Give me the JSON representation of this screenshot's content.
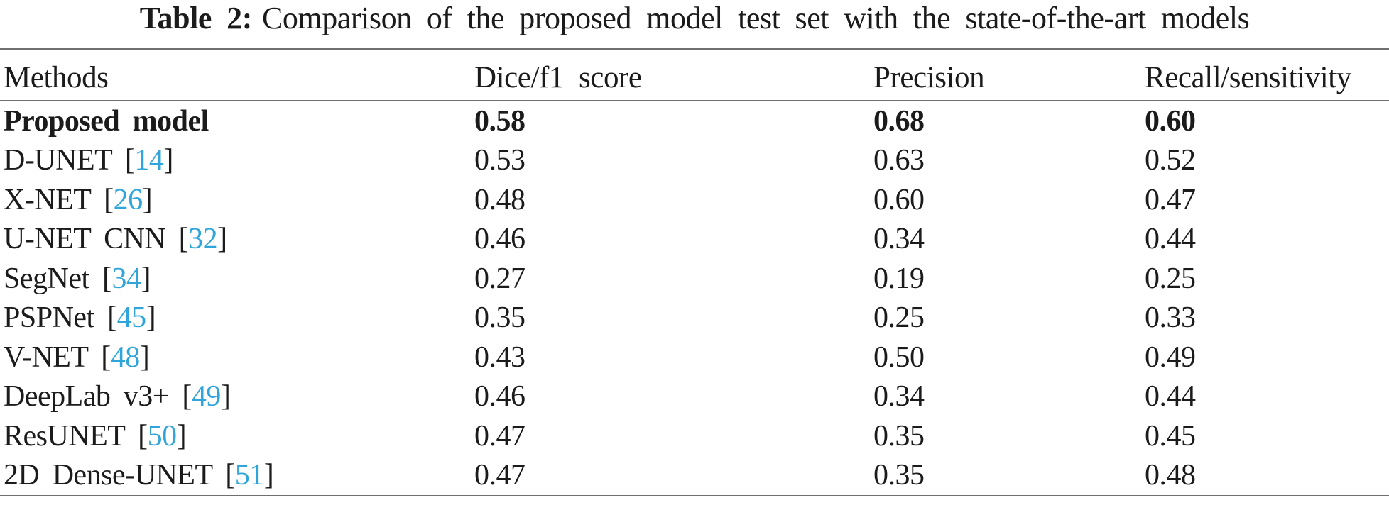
{
  "caption": {
    "label": "Table 2:",
    "text": "Comparison of the proposed model test set with the state-of-the-art models"
  },
  "citation": {
    "open": "[",
    "close": "]"
  },
  "table": {
    "columns": [
      "Methods",
      "Dice/f1 score",
      "Precision",
      "Recall/sensitivity"
    ],
    "rows": [
      {
        "method": "Proposed model",
        "ref": null,
        "dice": "0.58",
        "precision": "0.68",
        "recall": "0.60",
        "bold": true
      },
      {
        "method": "D-UNET",
        "ref": "14",
        "dice": "0.53",
        "precision": "0.63",
        "recall": "0.52",
        "bold": false
      },
      {
        "method": "X-NET",
        "ref": "26",
        "dice": "0.48",
        "precision": "0.60",
        "recall": "0.47",
        "bold": false
      },
      {
        "method": "U-NET CNN",
        "ref": "32",
        "dice": "0.46",
        "precision": "0.34",
        "recall": "0.44",
        "bold": false
      },
      {
        "method": "SegNet",
        "ref": "34",
        "dice": "0.27",
        "precision": "0.19",
        "recall": "0.25",
        "bold": false
      },
      {
        "method": "PSPNet",
        "ref": "45",
        "dice": "0.35",
        "precision": "0.25",
        "recall": "0.33",
        "bold": false
      },
      {
        "method": "V-NET",
        "ref": "48",
        "dice": "0.43",
        "precision": "0.50",
        "recall": "0.49",
        "bold": false
      },
      {
        "method": "DeepLab v3+",
        "ref": "49",
        "dice": "0.46",
        "precision": "0.34",
        "recall": "0.44",
        "bold": false
      },
      {
        "method": "ResUNET",
        "ref": "50",
        "dice": "0.47",
        "precision": "0.35",
        "recall": "0.45",
        "bold": false
      },
      {
        "method": "2D Dense-UNET",
        "ref": "51",
        "dice": "0.47",
        "precision": "0.35",
        "recall": "0.48",
        "bold": false
      }
    ]
  },
  "colors": {
    "citation_blue": "#2fa5dc",
    "rule_gray": "#6f6f6f",
    "text_black": "#1b1b1b"
  }
}
